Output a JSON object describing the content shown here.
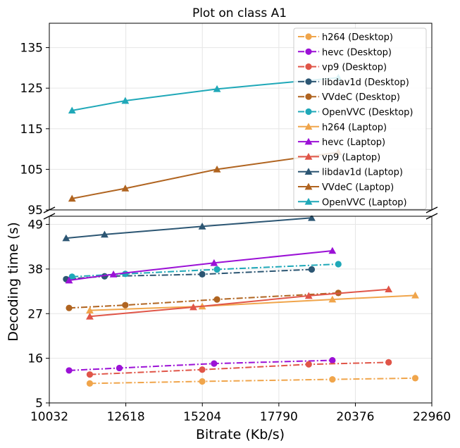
{
  "chart_data": {
    "type": "line",
    "title": "Plot on class A1",
    "xlabel": "Bitrate (Kb/s)",
    "ylabel": "Decoding time (s)",
    "xlim": [
      10032,
      22960
    ],
    "x_ticks": [
      10032,
      12618,
      15204,
      17790,
      20376,
      22960
    ],
    "broken_y_axis": true,
    "upper_panel": {
      "ylim": [
        95,
        141
      ],
      "y_ticks": [
        95,
        105,
        115,
        125,
        135
      ]
    },
    "lower_panel": {
      "ylim": [
        5,
        51
      ],
      "y_ticks": [
        5,
        16,
        27,
        38,
        49
      ]
    },
    "grid": true,
    "legend_position": "top-right",
    "series": [
      {
        "name": "h264 (Desktop)",
        "color": "#f0a54b",
        "marker": "circle",
        "linestyle": "dashdot",
        "x": [
          11400,
          15200,
          19600,
          22400
        ],
        "y": [
          9.8,
          10.3,
          10.8,
          11.1
        ]
      },
      {
        "name": "hevc (Desktop)",
        "color": "#9b11d6",
        "marker": "circle",
        "linestyle": "dashdot",
        "x": [
          10700,
          12400,
          15600,
          19600
        ],
        "y": [
          13.0,
          13.6,
          14.7,
          15.5
        ]
      },
      {
        "name": "vp9 (Desktop)",
        "color": "#e05548",
        "marker": "circle",
        "linestyle": "dashdot",
        "x": [
          11400,
          15200,
          18800,
          21500
        ],
        "y": [
          12.0,
          13.2,
          14.5,
          15.0
        ]
      },
      {
        "name": "libdav1d (Desktop)",
        "color": "#2c5673",
        "marker": "circle",
        "linestyle": "dashdot",
        "x": [
          10600,
          11900,
          15200,
          18900
        ],
        "y": [
          35.5,
          36.2,
          36.7,
          37.9
        ]
      },
      {
        "name": "VVdeC (Desktop)",
        "color": "#b06420",
        "marker": "circle",
        "linestyle": "dashdot",
        "x": [
          10700,
          12600,
          15700,
          19800
        ],
        "y": [
          28.4,
          29.1,
          30.5,
          32.1
        ]
      },
      {
        "name": "OpenVVC (Desktop)",
        "color": "#1fa8b8",
        "marker": "circle",
        "linestyle": "dashdot",
        "x": [
          10800,
          12600,
          15700,
          19800
        ],
        "y": [
          36.1,
          36.8,
          37.9,
          39.2
        ]
      },
      {
        "name": "h264 (Laptop)",
        "color": "#f0a54b",
        "marker": "triangle",
        "linestyle": "solid",
        "x": [
          11400,
          15200,
          19600,
          22400
        ],
        "y": [
          27.8,
          28.8,
          30.5,
          31.5
        ]
      },
      {
        "name": "hevc (Laptop)",
        "color": "#9b11d6",
        "marker": "triangle",
        "linestyle": "solid",
        "x": [
          10700,
          12200,
          15600,
          19600
        ],
        "y": [
          35.2,
          36.7,
          39.5,
          42.5
        ]
      },
      {
        "name": "vp9 (Laptop)",
        "color": "#e05548",
        "marker": "triangle",
        "linestyle": "solid",
        "x": [
          11400,
          14900,
          18800,
          21500
        ],
        "y": [
          26.3,
          28.6,
          31.4,
          33.0
        ]
      },
      {
        "name": "libdav1d (Laptop)",
        "color": "#2c5673",
        "marker": "triangle",
        "linestyle": "solid",
        "x": [
          10600,
          11900,
          15200,
          18900
        ],
        "y": [
          45.6,
          46.5,
          48.5,
          50.6
        ]
      },
      {
        "name": "VVdeC (Laptop)",
        "color": "#b06420",
        "marker": "triangle",
        "linestyle": "solid",
        "x": [
          10800,
          12600,
          15700,
          19800
        ],
        "y": [
          97.8,
          100.3,
          105.0,
          109.2
        ]
      },
      {
        "name": "OpenVVC (Laptop)",
        "color": "#1fa8b8",
        "marker": "triangle",
        "linestyle": "solid",
        "x": [
          10800,
          12600,
          15700,
          19800
        ],
        "y": [
          119.5,
          121.9,
          124.8,
          127.6
        ]
      }
    ]
  }
}
